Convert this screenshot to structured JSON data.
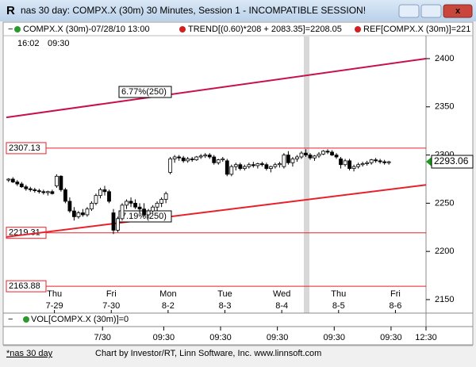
{
  "window": {
    "title": "nas 30 day: COMPX.X (30m) 30 Minutes, Session 1 - INCOMPATIBLE SESSION!",
    "status": [
      "*nas 30 day",
      "Chart by Investor/RT, Linn Software, Inc. www.linnsoft.com"
    ]
  },
  "chart_data": {
    "type": "candlestick",
    "legend": [
      "COMPX.X (30m)-07/28/10 13:00",
      "TREND[(0.60)*208 + 2083.35]=2208.05",
      "REF[COMPX.X (30m)]=221"
    ],
    "time_labels": [
      "16:02",
      "09:30"
    ],
    "ohlc": [
      [
        2274,
        2276,
        2272,
        2275
      ],
      [
        2275,
        2277,
        2271,
        2272
      ],
      [
        2272,
        2274,
        2268,
        2270
      ],
      [
        2270,
        2272,
        2266,
        2267
      ],
      [
        2267,
        2269,
        2263,
        2265
      ],
      [
        2265,
        2267,
        2262,
        2264
      ],
      [
        2264,
        2266,
        2261,
        2263
      ],
      [
        2263,
        2265,
        2260,
        2262
      ],
      [
        2262,
        2264,
        2259,
        2261
      ],
      [
        2261,
        2263,
        2258,
        2262
      ],
      [
        2262,
        2264,
        2259,
        2260
      ],
      [
        2268,
        2280,
        2266,
        2278
      ],
      [
        2278,
        2279,
        2262,
        2264
      ],
      [
        2264,
        2266,
        2250,
        2252
      ],
      [
        2252,
        2256,
        2240,
        2242
      ],
      [
        2242,
        2246,
        2232,
        2236
      ],
      [
        2236,
        2242,
        2234,
        2240
      ],
      [
        2240,
        2244,
        2236,
        2238
      ],
      [
        2238,
        2246,
        2236,
        2244
      ],
      [
        2244,
        2252,
        2242,
        2250
      ],
      [
        2250,
        2260,
        2248,
        2258
      ],
      [
        2258,
        2266,
        2255,
        2264
      ],
      [
        2264,
        2268,
        2258,
        2262
      ],
      [
        2262,
        2264,
        2250,
        2252
      ],
      [
        2240,
        2244,
        2218,
        2222
      ],
      [
        2222,
        2236,
        2220,
        2234
      ],
      [
        2234,
        2250,
        2232,
        2248
      ],
      [
        2248,
        2254,
        2244,
        2252
      ],
      [
        2252,
        2256,
        2246,
        2250
      ],
      [
        2250,
        2254,
        2244,
        2246
      ],
      [
        2246,
        2250,
        2240,
        2244
      ],
      [
        2244,
        2250,
        2236,
        2238
      ],
      [
        2238,
        2244,
        2234,
        2242
      ],
      [
        2242,
        2248,
        2240,
        2246
      ],
      [
        2246,
        2252,
        2242,
        2250
      ],
      [
        2250,
        2256,
        2246,
        2254
      ],
      [
        2254,
        2262,
        2250,
        2260
      ],
      [
        2282,
        2298,
        2280,
        2296
      ],
      [
        2296,
        2300,
        2292,
        2298
      ],
      [
        2298,
        2300,
        2294,
        2297
      ],
      [
        2297,
        2299,
        2292,
        2294
      ],
      [
        2294,
        2298,
        2292,
        2296
      ],
      [
        2296,
        2298,
        2293,
        2295
      ],
      [
        2295,
        2299,
        2294,
        2298
      ],
      [
        2298,
        2301,
        2296,
        2299
      ],
      [
        2299,
        2302,
        2297,
        2300
      ],
      [
        2300,
        2302,
        2296,
        2298
      ],
      [
        2298,
        2300,
        2290,
        2292
      ],
      [
        2292,
        2296,
        2290,
        2295
      ],
      [
        2295,
        2298,
        2293,
        2296
      ],
      [
        2294,
        2296,
        2278,
        2280
      ],
      [
        2280,
        2290,
        2278,
        2288
      ],
      [
        2288,
        2292,
        2284,
        2290
      ],
      [
        2290,
        2292,
        2284,
        2286
      ],
      [
        2286,
        2290,
        2284,
        2288
      ],
      [
        2288,
        2292,
        2286,
        2290
      ],
      [
        2290,
        2293,
        2287,
        2289
      ],
      [
        2289,
        2292,
        2286,
        2291
      ],
      [
        2291,
        2293,
        2288,
        2290
      ],
      [
        2290,
        2292,
        2284,
        2286
      ],
      [
        2286,
        2289,
        2282,
        2288
      ],
      [
        2288,
        2292,
        2286,
        2290
      ],
      [
        2290,
        2293,
        2287,
        2291
      ],
      [
        2288,
        2302,
        2286,
        2300
      ],
      [
        2300,
        2304,
        2290,
        2292
      ],
      [
        2292,
        2298,
        2288,
        2296
      ],
      [
        2296,
        2300,
        2293,
        2298
      ],
      [
        2298,
        2304,
        2296,
        2302
      ],
      [
        2302,
        2306,
        2298,
        2300
      ],
      [
        2300,
        2302,
        2295,
        2297
      ],
      [
        2297,
        2300,
        2294,
        2299
      ],
      [
        2299,
        2303,
        2297,
        2301
      ],
      [
        2301,
        2305,
        2300,
        2304
      ],
      [
        2304,
        2306,
        2301,
        2303
      ],
      [
        2303,
        2305,
        2299,
        2300
      ],
      [
        2300,
        2302,
        2296,
        2298
      ],
      [
        2296,
        2298,
        2286,
        2290
      ],
      [
        2290,
        2296,
        2288,
        2294
      ],
      [
        2294,
        2296,
        2284,
        2286
      ],
      [
        2286,
        2290,
        2283,
        2288
      ],
      [
        2288,
        2292,
        2286,
        2290
      ],
      [
        2290,
        2293,
        2288,
        2291
      ],
      [
        2291,
        2294,
        2289,
        2292
      ],
      [
        2292,
        2296,
        2290,
        2295
      ],
      [
        2295,
        2297,
        2292,
        2294
      ],
      [
        2294,
        2296,
        2291,
        2293
      ],
      [
        2293,
        2295,
        2290,
        2292
      ],
      [
        2292,
        2294,
        2290,
        2293
      ]
    ],
    "xlim": [
      0,
      96
    ],
    "ylim": [
      2136,
      2423
    ],
    "yticks": [
      2150,
      2200,
      2250,
      2300,
      2350,
      2400
    ],
    "day_ticks": [
      {
        "value": 11,
        "label": "Thu"
      },
      {
        "value": 24,
        "label": "Fri"
      },
      {
        "value": 37,
        "label": "Mon"
      },
      {
        "value": 50,
        "label": "Tue"
      },
      {
        "value": 63,
        "label": "Wed"
      },
      {
        "value": 76,
        "label": "Thu"
      },
      {
        "value": 89,
        "label": "Fri"
      }
    ],
    "day_dates": [
      "7-29",
      "7-30",
      "8-2",
      "8-3",
      "8-4",
      "8-5",
      "8-6"
    ],
    "time_ticks": [
      {
        "value": 22,
        "label": "7/30"
      },
      {
        "value": 36,
        "label": "09:30"
      },
      {
        "value": 49,
        "label": "09:30"
      },
      {
        "value": 62,
        "label": "09:30"
      },
      {
        "value": 75,
        "label": "09:30"
      },
      {
        "value": 88,
        "label": "09:30"
      },
      {
        "value": 96,
        "label": "12:30"
      }
    ],
    "trend_lines": [
      {
        "color": "#c8104a",
        "values": [
          2339,
          2400
        ]
      },
      {
        "color": "#e8202a",
        "values": [
          2215,
          2269
        ]
      }
    ],
    "ref_lines": [
      2307.13,
      2219.31,
      2163.88
    ],
    "ref_color": "#e8202a",
    "last_price": 2293.06,
    "annotations": [
      "6.77%(250)",
      "7.19%(250)"
    ],
    "volume_label": "VOL[COMPX.X (30m)]=0"
  }
}
